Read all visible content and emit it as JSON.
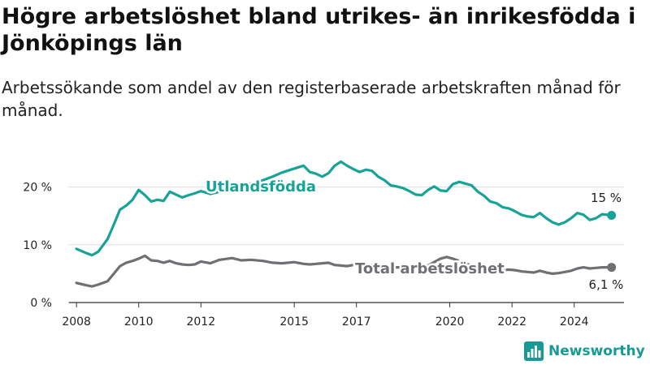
{
  "header": {
    "title": "Högre arbetslöshet bland utrikes- än inrikesfödda i Jönköpings län",
    "subtitle": "Arbetssökande som andel av den registerbaserade arbetskraften månad för månad."
  },
  "brand": {
    "name": "Newsworthy",
    "icon": "bar-chart-logo-icon",
    "color": "#179a96"
  },
  "colors": {
    "utlandsfodda": "#17a398",
    "total": "#6f6f74",
    "grid": "#dddddd",
    "axis": "#333333"
  },
  "chart_data": {
    "type": "line",
    "ylim": [
      0,
      25
    ],
    "xlim": [
      2007.5,
      2025.6
    ],
    "y_ticks": [
      {
        "value": 0,
        "label": "0 %"
      },
      {
        "value": 10,
        "label": "10 %"
      },
      {
        "value": 20,
        "label": "20 %"
      }
    ],
    "x_ticks": [
      {
        "value": 2008,
        "label": "2008"
      },
      {
        "value": 2010,
        "label": "2010"
      },
      {
        "value": 2012,
        "label": "2012"
      },
      {
        "value": 2015,
        "label": "2015"
      },
      {
        "value": 2017,
        "label": "2017"
      },
      {
        "value": 2020,
        "label": "2020"
      },
      {
        "value": 2022,
        "label": "2022"
      },
      {
        "value": 2024,
        "label": "2024"
      }
    ],
    "grid": true,
    "series": [
      {
        "name": "Utlandsfödda",
        "color": "#17a398",
        "x": [
          2008.0,
          2008.3,
          2008.5,
          2008.7,
          2009.0,
          2009.2,
          2009.4,
          2009.6,
          2009.8,
          2010.0,
          2010.2,
          2010.4,
          2010.6,
          2010.8,
          2011.0,
          2011.2,
          2011.4,
          2011.6,
          2011.8,
          2012.0,
          2012.3,
          2012.6,
          2013.0,
          2013.3,
          2013.6,
          2014.0,
          2014.3,
          2014.6,
          2015.0,
          2015.3,
          2015.5,
          2015.7,
          2015.9,
          2016.1,
          2016.3,
          2016.5,
          2016.7,
          2016.9,
          2017.1,
          2017.3,
          2017.5,
          2017.7,
          2017.9,
          2018.1,
          2018.3,
          2018.5,
          2018.7,
          2018.9,
          2019.1,
          2019.3,
          2019.5,
          2019.7,
          2019.9,
          2020.1,
          2020.3,
          2020.5,
          2020.7,
          2020.9,
          2021.1,
          2021.3,
          2021.5,
          2021.7,
          2021.9,
          2022.1,
          2022.3,
          2022.5,
          2022.7,
          2022.9,
          2023.1,
          2023.3,
          2023.5,
          2023.7,
          2023.9,
          2024.1,
          2024.3,
          2024.5,
          2024.7,
          2024.9,
          2025.2
        ],
        "values": [
          9.3,
          8.6,
          8.2,
          8.8,
          11,
          13.5,
          16.1,
          16.8,
          17.8,
          19.5,
          18.6,
          17.5,
          17.8,
          17.6,
          19.2,
          18.7,
          18.2,
          18.6,
          18.9,
          19.3,
          18.8,
          19.2,
          19.6,
          20.2,
          20.6,
          21.2,
          21.8,
          22.5,
          23.2,
          23.7,
          22.6,
          22.3,
          21.8,
          22.4,
          23.7,
          24.4,
          23.7,
          23.1,
          22.6,
          23,
          22.8,
          21.8,
          21.2,
          20.3,
          20.1,
          19.8,
          19.3,
          18.7,
          18.6,
          19.5,
          20.1,
          19.4,
          19.3,
          20.5,
          20.9,
          20.6,
          20.3,
          19.2,
          18.5,
          17.5,
          17.2,
          16.5,
          16.3,
          15.8,
          15.2,
          14.9,
          14.8,
          15.5,
          14.6,
          13.9,
          13.5,
          13.9,
          14.6,
          15.5,
          15.2,
          14.3,
          14.6,
          15.3,
          15.1
        ]
      },
      {
        "name": "Total arbetslöshet",
        "color": "#6f6f74",
        "x": [
          2008.0,
          2008.3,
          2008.5,
          2008.7,
          2009.0,
          2009.2,
          2009.4,
          2009.6,
          2009.8,
          2010.0,
          2010.2,
          2010.4,
          2010.6,
          2010.8,
          2011.0,
          2011.2,
          2011.4,
          2011.6,
          2011.8,
          2012.0,
          2012.3,
          2012.6,
          2013.0,
          2013.3,
          2013.6,
          2014.0,
          2014.3,
          2014.6,
          2015.0,
          2015.3,
          2015.5,
          2015.7,
          2015.9,
          2016.1,
          2016.3,
          2016.5,
          2016.7,
          2016.9,
          2017.1,
          2017.3,
          2017.5,
          2017.7,
          2017.9,
          2018.1,
          2018.3,
          2018.5,
          2018.7,
          2018.9,
          2019.1,
          2019.3,
          2019.5,
          2019.7,
          2019.9,
          2020.1,
          2020.3,
          2020.5,
          2020.7,
          2020.9,
          2021.1,
          2021.3,
          2021.5,
          2021.7,
          2021.9,
          2022.1,
          2022.3,
          2022.5,
          2022.7,
          2022.9,
          2023.1,
          2023.3,
          2023.5,
          2023.7,
          2023.9,
          2024.1,
          2024.3,
          2024.5,
          2024.7,
          2024.9,
          2025.2
        ],
        "values": [
          3.4,
          3,
          2.8,
          3.1,
          3.7,
          5,
          6.3,
          6.9,
          7.2,
          7.6,
          8.1,
          7.3,
          7.2,
          6.9,
          7.2,
          6.8,
          6.6,
          6.5,
          6.6,
          7.1,
          6.8,
          7.4,
          7.7,
          7.3,
          7.4,
          7.2,
          6.9,
          6.8,
          7,
          6.7,
          6.6,
          6.7,
          6.8,
          6.9,
          6.5,
          6.4,
          6.3,
          6.5,
          6.4,
          6.4,
          6.3,
          6.2,
          6.1,
          6.1,
          6.1,
          6.1,
          6.1,
          6,
          6,
          6.4,
          7,
          7.6,
          7.9,
          7.6,
          7.2,
          6.8,
          6.4,
          6.2,
          6,
          5.9,
          5.8,
          5.6,
          5.7,
          5.6,
          5.4,
          5.3,
          5.2,
          5.5,
          5.2,
          5,
          5.1,
          5.3,
          5.5,
          5.9,
          6.1,
          5.9,
          6,
          6.1,
          6.1
        ]
      }
    ],
    "series_labels": [
      "Utlandsfödda",
      "Total arbetslöshet"
    ],
    "end_labels": [
      "15 %",
      "6,1 %"
    ]
  }
}
